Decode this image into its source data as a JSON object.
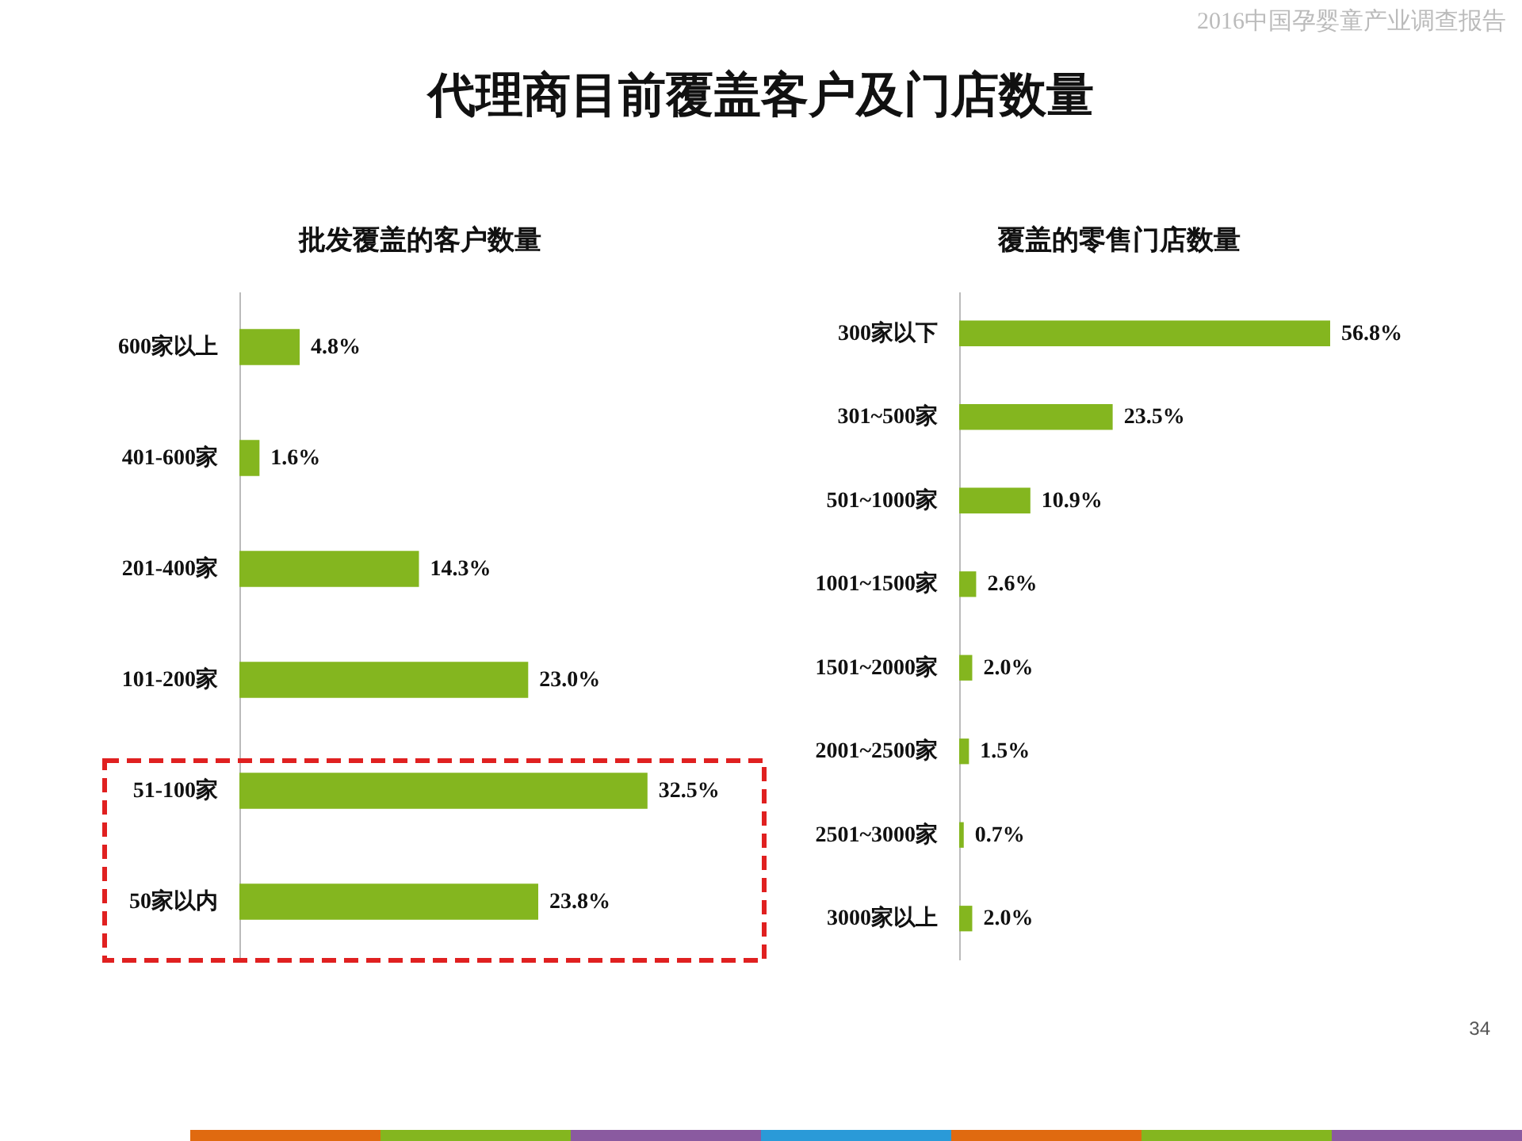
{
  "chart_data": [
    {
      "type": "bar",
      "orientation": "horizontal",
      "title": "批发覆盖的客户数量",
      "categories": [
        "600家以上",
        "401-600家",
        "201-400家",
        "101-200家",
        "51-100家",
        "50家以内"
      ],
      "values": [
        4.8,
        1.6,
        14.3,
        23.0,
        32.5,
        23.8
      ],
      "value_labels": [
        "4.8%",
        "1.6%",
        "14.3%",
        "23.0%",
        "32.5%",
        "23.8%"
      ],
      "color": "#84b61f",
      "annotations": [
        "2016中国孕婴童产业调查报告",
        "代理商目前覆盖客户及门店数量"
      ]
    },
    {
      "type": "bar",
      "orientation": "horizontal",
      "title": "覆盖的零售门店数量",
      "categories": [
        "300家以下",
        "301~500家",
        "501~1000家",
        "1001~1500家",
        "1501~2000家",
        "2001~2500家",
        "2501~3000家",
        "3000家以上"
      ],
      "values": [
        56.8,
        23.5,
        10.9,
        2.6,
        2.0,
        1.5,
        0.7,
        2.0
      ],
      "value_labels": [
        "56.8%",
        "23.5%",
        "10.9%",
        "2.6%",
        "2.0%",
        "1.5%",
        "0.7%",
        "2.0%"
      ],
      "color": "#84b61f",
      "annotations": [
        "34"
      ]
    }
  ]
}
